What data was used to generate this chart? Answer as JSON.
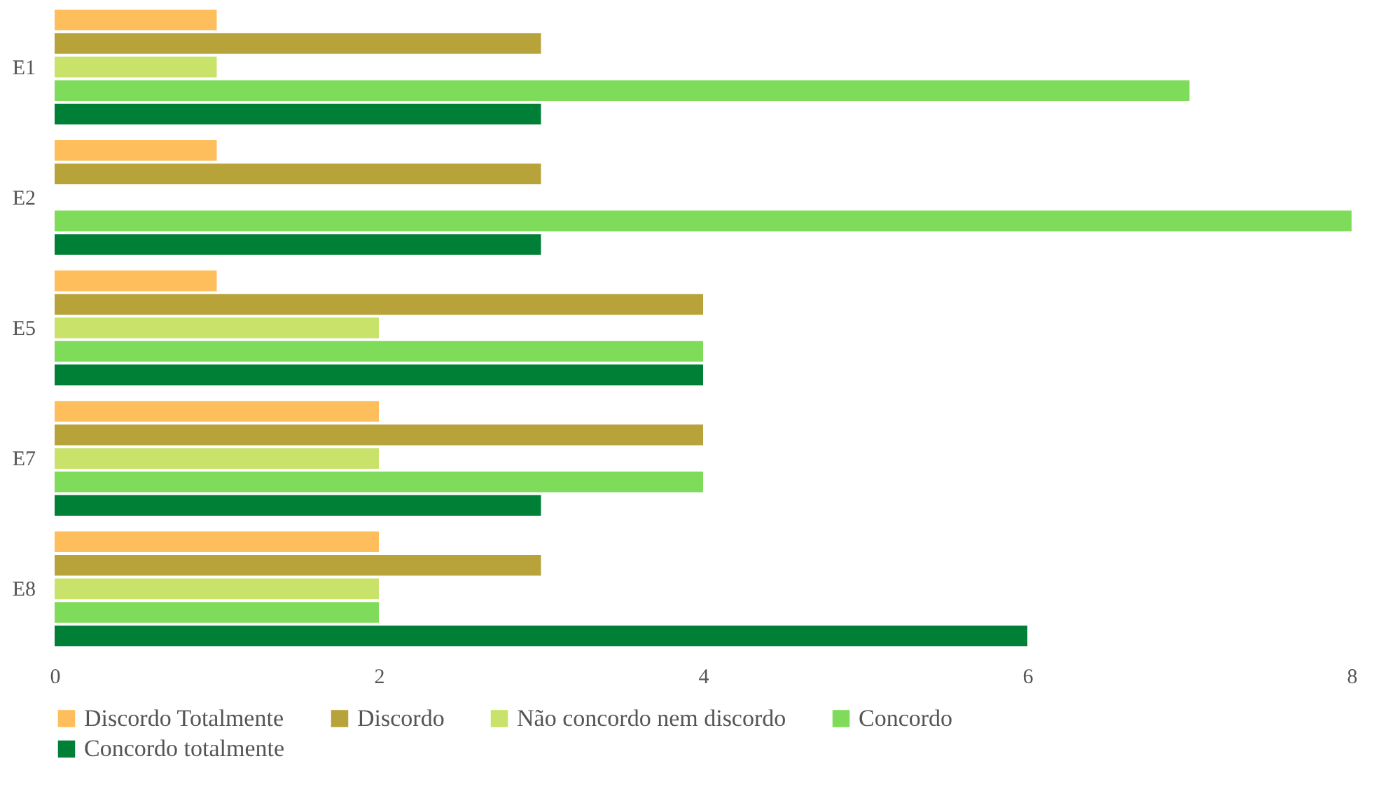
{
  "chart_data": {
    "type": "bar",
    "orientation": "horizontal",
    "categories": [
      "E1",
      "E2",
      "E5",
      "E7",
      "E8"
    ],
    "series": [
      {
        "name": "Discordo Totalmente",
        "color": "#ffbe5c",
        "values": [
          1,
          1,
          1,
          2,
          2
        ]
      },
      {
        "name": "Discordo",
        "color": "#b8a23a",
        "values": [
          3,
          3,
          4,
          4,
          3
        ]
      },
      {
        "name": "Não concordo nem discordo",
        "color": "#c9e26a",
        "values": [
          1,
          null,
          2,
          2,
          2
        ]
      },
      {
        "name": "Concordo",
        "color": "#7fdb5a",
        "values": [
          7,
          8,
          4,
          4,
          2
        ]
      },
      {
        "name": "Concordo totalmente",
        "color": "#007f36",
        "values": [
          3,
          3,
          4,
          3,
          6
        ]
      }
    ],
    "xlim": [
      0,
      8
    ],
    "xticks": [
      0,
      2,
      4,
      6,
      8
    ],
    "grid": false,
    "legend": "bottom"
  }
}
